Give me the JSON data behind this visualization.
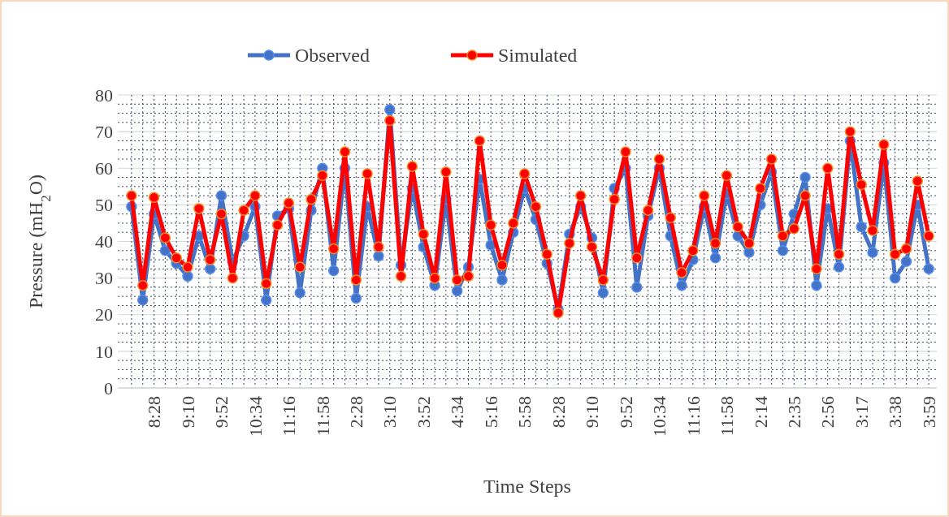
{
  "chart_data": {
    "type": "line",
    "xlabel": "Time Steps",
    "ylabel": "Pressure (mH$_{2}$O)",
    "categories": [
      null,
      null,
      "8:28",
      null,
      null,
      "9:10",
      null,
      null,
      "9:52",
      null,
      null,
      "10:34",
      null,
      null,
      "11:16",
      null,
      null,
      "11:58",
      null,
      null,
      "2:28",
      null,
      null,
      "3:10",
      null,
      null,
      "3:52",
      null,
      null,
      "4:34",
      null,
      null,
      "5:16",
      null,
      null,
      "5:58",
      null,
      null,
      "8:28",
      null,
      null,
      "9:10",
      null,
      null,
      "9:52",
      null,
      null,
      "10:34",
      null,
      null,
      "11:16",
      null,
      null,
      "11:58",
      null,
      null,
      "2:14",
      null,
      null,
      "2:35",
      null,
      null,
      "2:56",
      null,
      null,
      "3:17",
      null,
      null,
      "3:38",
      null,
      null,
      "3:59"
    ],
    "series": [
      {
        "name": "Observed",
        "color": "#4472c4",
        "values": [
          49.5,
          24,
          47.5,
          37.5,
          34,
          30.5,
          41.5,
          32.5,
          52.5,
          34.5,
          41.5,
          49.5,
          24,
          47,
          49,
          26,
          48.5,
          60,
          32,
          60,
          24.5,
          49.5,
          36,
          76,
          33.5,
          54.5,
          38.5,
          28,
          51.5,
          26.5,
          33,
          57,
          39,
          29.5,
          42.5,
          54.5,
          46,
          34,
          21.5,
          42,
          49.5,
          41,
          26,
          54.5,
          60,
          27.5,
          47,
          60,
          41.5,
          28,
          35,
          49.5,
          35.5,
          53,
          41.5,
          37,
          50,
          59,
          37.5,
          47.5,
          57.5,
          28,
          49,
          33,
          67.5,
          44,
          37,
          61.5,
          30,
          34.5,
          50,
          32.5
        ]
      },
      {
        "name": "Simulated",
        "color": "#ff0000",
        "values": [
          52.5,
          28,
          52,
          41,
          35.5,
          33,
          49,
          35,
          47.5,
          30,
          48.5,
          52.5,
          28.5,
          44.5,
          50.5,
          33,
          51.5,
          58,
          38,
          64.5,
          29.5,
          58.5,
          38.5,
          73,
          30.5,
          60.5,
          42,
          30,
          59,
          29.5,
          30.5,
          67.5,
          44.5,
          33.5,
          45,
          58.5,
          49.5,
          36.5,
          20.5,
          39.5,
          52.5,
          38.5,
          29.5,
          51.5,
          64.5,
          35.5,
          48.5,
          62.5,
          46.5,
          31.5,
          37.5,
          52.5,
          39.5,
          58,
          44,
          39.5,
          54.5,
          62.5,
          41.5,
          43.5,
          52.5,
          32.5,
          60,
          36.5,
          70,
          55.5,
          43,
          66.5,
          36.5,
          38,
          56.5,
          41.5
        ]
      }
    ],
    "ylim": [
      0,
      80
    ],
    "yticks": [
      0,
      10,
      20,
      30,
      40,
      50,
      60,
      70,
      80
    ],
    "grid": true,
    "legend": "top",
    "marker": "circle",
    "line_style": "solid"
  }
}
